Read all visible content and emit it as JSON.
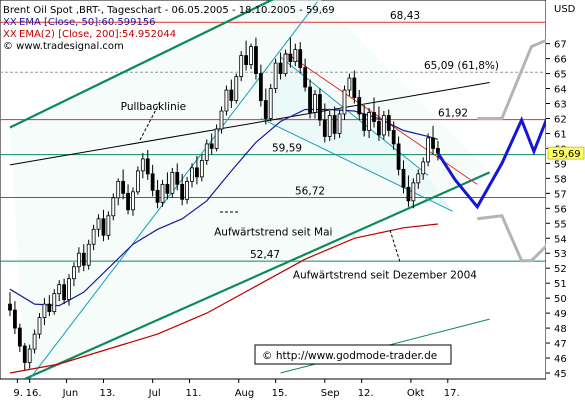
{
  "legend": {
    "title": "Brent Oil Spot ,BRT-, Tageschart - 06.05.2005 - 18.10.2005 - 59,69",
    "ema50": "EMA [Close, 50]:60.599156",
    "ema200": "EMA(2) [Close, 200]:54.952044",
    "ema50_marker": "XX",
    "ema200_marker": "XX",
    "copyright": "© www.tradesignal.com"
  },
  "currency": "USD",
  "watermark": "© http://www.godmode-trader.de",
  "colors": {
    "candle_up": "#ffffff",
    "candle_down": "#000000",
    "trend_green": "#0b8a5a",
    "ema50": "#1a1aa0",
    "ema200": "#c00000",
    "resistance_red": "#e03030",
    "channel_cyan": "#1a9fb0",
    "projection_blue": "#1515d8",
    "projection_gray": "#b4b4b4",
    "price_tag_bg": "#ffff66"
  },
  "chart_data": {
    "type": "candlestick",
    "title": "Brent Oil Spot ,BRT-, Tageschart - 06.05.2005 - 18.10.2005 - 59,69",
    "ylabel": "USD",
    "ylim": [
      45,
      68
    ],
    "y_ticks": [
      45,
      46,
      47,
      48,
      49,
      50,
      51,
      52,
      53,
      54,
      55,
      56,
      57,
      58,
      59,
      60,
      61,
      62,
      63,
      64,
      65,
      66,
      67
    ],
    "x_tick_labels": [
      "9.",
      "16.",
      "Jun",
      "13.",
      "Jul",
      "11.",
      "Aug",
      "15.",
      "Sep",
      "12.",
      "Okt",
      "17."
    ],
    "x_tick_days": [
      3,
      8,
      23,
      38,
      58,
      73,
      93,
      108,
      128,
      143,
      163,
      178
    ],
    "x_range_days": [
      0,
      185
    ],
    "last_price": 59.69,
    "last_price_label": "59,69",
    "candles": [
      {
        "d": 0,
        "o": 49.6,
        "h": 50.4,
        "l": 48.8,
        "c": 49.2
      },
      {
        "d": 2,
        "o": 49.2,
        "h": 49.8,
        "l": 47.6,
        "c": 48.0
      },
      {
        "d": 4,
        "o": 48.0,
        "h": 48.3,
        "l": 46.4,
        "c": 46.8
      },
      {
        "d": 6,
        "o": 46.8,
        "h": 47.0,
        "l": 45.2,
        "c": 45.7
      },
      {
        "d": 8,
        "o": 45.7,
        "h": 46.9,
        "l": 45.3,
        "c": 46.6
      },
      {
        "d": 10,
        "o": 46.6,
        "h": 47.9,
        "l": 46.3,
        "c": 47.6
      },
      {
        "d": 12,
        "o": 47.6,
        "h": 49.0,
        "l": 47.3,
        "c": 48.7
      },
      {
        "d": 14,
        "o": 48.7,
        "h": 50.0,
        "l": 48.2,
        "c": 49.6
      },
      {
        "d": 16,
        "o": 49.6,
        "h": 50.2,
        "l": 48.8,
        "c": 49.1
      },
      {
        "d": 18,
        "o": 49.1,
        "h": 50.6,
        "l": 48.9,
        "c": 50.3
      },
      {
        "d": 20,
        "o": 50.3,
        "h": 51.2,
        "l": 49.8,
        "c": 50.9
      },
      {
        "d": 22,
        "o": 50.9,
        "h": 51.3,
        "l": 49.6,
        "c": 49.9
      },
      {
        "d": 24,
        "o": 49.9,
        "h": 51.6,
        "l": 49.5,
        "c": 51.3
      },
      {
        "d": 26,
        "o": 51.3,
        "h": 52.4,
        "l": 50.8,
        "c": 52.1
      },
      {
        "d": 28,
        "o": 52.1,
        "h": 53.4,
        "l": 51.7,
        "c": 53.0
      },
      {
        "d": 30,
        "o": 53.0,
        "h": 53.6,
        "l": 51.8,
        "c": 52.2
      },
      {
        "d": 32,
        "o": 52.2,
        "h": 53.9,
        "l": 51.9,
        "c": 53.6
      },
      {
        "d": 34,
        "o": 53.6,
        "h": 54.9,
        "l": 53.2,
        "c": 54.6
      },
      {
        "d": 36,
        "o": 54.6,
        "h": 55.6,
        "l": 54.1,
        "c": 55.3
      },
      {
        "d": 38,
        "o": 55.3,
        "h": 55.9,
        "l": 53.8,
        "c": 54.2
      },
      {
        "d": 40,
        "o": 54.2,
        "h": 55.8,
        "l": 53.9,
        "c": 55.5
      },
      {
        "d": 42,
        "o": 55.5,
        "h": 57.0,
        "l": 55.2,
        "c": 56.7
      },
      {
        "d": 44,
        "o": 56.7,
        "h": 58.0,
        "l": 56.2,
        "c": 57.8
      },
      {
        "d": 46,
        "o": 57.8,
        "h": 58.6,
        "l": 56.6,
        "c": 57.0
      },
      {
        "d": 48,
        "o": 57.0,
        "h": 57.6,
        "l": 55.6,
        "c": 55.9
      },
      {
        "d": 50,
        "o": 55.9,
        "h": 57.4,
        "l": 55.5,
        "c": 57.1
      },
      {
        "d": 52,
        "o": 57.1,
        "h": 58.8,
        "l": 56.9,
        "c": 58.5
      },
      {
        "d": 54,
        "o": 58.5,
        "h": 59.7,
        "l": 58.0,
        "c": 59.3
      },
      {
        "d": 56,
        "o": 59.3,
        "h": 59.9,
        "l": 57.9,
        "c": 58.3
      },
      {
        "d": 58,
        "o": 58.3,
        "h": 58.9,
        "l": 56.8,
        "c": 57.2
      },
      {
        "d": 60,
        "o": 57.2,
        "h": 57.9,
        "l": 56.0,
        "c": 56.4
      },
      {
        "d": 62,
        "o": 56.4,
        "h": 57.9,
        "l": 56.1,
        "c": 57.6
      },
      {
        "d": 64,
        "o": 57.6,
        "h": 58.4,
        "l": 56.6,
        "c": 57.0
      },
      {
        "d": 66,
        "o": 57.0,
        "h": 58.7,
        "l": 56.7,
        "c": 58.4
      },
      {
        "d": 68,
        "o": 58.4,
        "h": 59.0,
        "l": 57.2,
        "c": 57.6
      },
      {
        "d": 70,
        "o": 57.6,
        "h": 58.3,
        "l": 56.2,
        "c": 56.6
      },
      {
        "d": 72,
        "o": 56.6,
        "h": 58.1,
        "l": 56.3,
        "c": 57.8
      },
      {
        "d": 74,
        "o": 57.8,
        "h": 59.0,
        "l": 57.4,
        "c": 58.7
      },
      {
        "d": 76,
        "o": 58.7,
        "h": 59.5,
        "l": 57.6,
        "c": 58.1
      },
      {
        "d": 78,
        "o": 58.1,
        "h": 59.6,
        "l": 57.8,
        "c": 59.2
      },
      {
        "d": 80,
        "o": 59.2,
        "h": 60.6,
        "l": 58.9,
        "c": 60.3
      },
      {
        "d": 82,
        "o": 60.3,
        "h": 61.0,
        "l": 59.6,
        "c": 60.0
      },
      {
        "d": 84,
        "o": 60.0,
        "h": 61.6,
        "l": 59.8,
        "c": 61.3
      },
      {
        "d": 86,
        "o": 61.3,
        "h": 62.8,
        "l": 61.0,
        "c": 62.5
      },
      {
        "d": 88,
        "o": 62.5,
        "h": 64.2,
        "l": 62.2,
        "c": 63.9
      },
      {
        "d": 90,
        "o": 63.9,
        "h": 64.6,
        "l": 62.7,
        "c": 63.2
      },
      {
        "d": 92,
        "o": 63.2,
        "h": 65.0,
        "l": 63.0,
        "c": 64.8
      },
      {
        "d": 94,
        "o": 64.8,
        "h": 66.5,
        "l": 64.5,
        "c": 66.2
      },
      {
        "d": 96,
        "o": 66.2,
        "h": 67.2,
        "l": 65.2,
        "c": 65.6
      },
      {
        "d": 98,
        "o": 65.6,
        "h": 67.0,
        "l": 65.3,
        "c": 66.8
      },
      {
        "d": 100,
        "o": 66.8,
        "h": 67.4,
        "l": 64.6,
        "c": 65.0
      },
      {
        "d": 102,
        "o": 65.0,
        "h": 65.6,
        "l": 62.8,
        "c": 63.2
      },
      {
        "d": 104,
        "o": 63.2,
        "h": 64.0,
        "l": 61.6,
        "c": 62.0
      },
      {
        "d": 106,
        "o": 62.0,
        "h": 64.3,
        "l": 61.8,
        "c": 64.0
      },
      {
        "d": 108,
        "o": 64.0,
        "h": 66.0,
        "l": 63.7,
        "c": 65.7
      },
      {
        "d": 110,
        "o": 65.7,
        "h": 66.4,
        "l": 64.6,
        "c": 65.0
      },
      {
        "d": 112,
        "o": 65.0,
        "h": 66.6,
        "l": 64.8,
        "c": 66.3
      },
      {
        "d": 114,
        "o": 66.3,
        "h": 67.4,
        "l": 65.4,
        "c": 65.8
      },
      {
        "d": 116,
        "o": 65.8,
        "h": 67.0,
        "l": 65.5,
        "c": 66.6
      },
      {
        "d": 118,
        "o": 66.6,
        "h": 67.1,
        "l": 65.0,
        "c": 65.4
      },
      {
        "d": 120,
        "o": 65.4,
        "h": 66.0,
        "l": 63.8,
        "c": 64.1
      },
      {
        "d": 122,
        "o": 64.1,
        "h": 64.6,
        "l": 62.0,
        "c": 62.4
      },
      {
        "d": 124,
        "o": 62.4,
        "h": 63.9,
        "l": 62.0,
        "c": 63.6
      },
      {
        "d": 126,
        "o": 63.6,
        "h": 64.0,
        "l": 61.5,
        "c": 61.9
      },
      {
        "d": 128,
        "o": 61.9,
        "h": 63.0,
        "l": 60.4,
        "c": 60.8
      },
      {
        "d": 130,
        "o": 60.8,
        "h": 62.5,
        "l": 60.5,
        "c": 62.2
      },
      {
        "d": 132,
        "o": 62.2,
        "h": 62.8,
        "l": 60.6,
        "c": 61.0
      },
      {
        "d": 134,
        "o": 61.0,
        "h": 62.6,
        "l": 60.7,
        "c": 62.3
      },
      {
        "d": 136,
        "o": 62.3,
        "h": 64.2,
        "l": 61.9,
        "c": 63.9
      },
      {
        "d": 138,
        "o": 63.9,
        "h": 65.0,
        "l": 63.5,
        "c": 64.7
      },
      {
        "d": 140,
        "o": 64.7,
        "h": 65.2,
        "l": 63.0,
        "c": 63.4
      },
      {
        "d": 142,
        "o": 63.4,
        "h": 63.9,
        "l": 61.9,
        "c": 62.3
      },
      {
        "d": 144,
        "o": 62.3,
        "h": 62.9,
        "l": 60.8,
        "c": 61.2
      },
      {
        "d": 146,
        "o": 61.2,
        "h": 62.7,
        "l": 60.7,
        "c": 62.4
      },
      {
        "d": 148,
        "o": 62.4,
        "h": 63.4,
        "l": 61.4,
        "c": 61.8
      },
      {
        "d": 150,
        "o": 61.8,
        "h": 62.8,
        "l": 60.5,
        "c": 60.9
      },
      {
        "d": 152,
        "o": 60.9,
        "h": 62.5,
        "l": 60.6,
        "c": 62.2
      },
      {
        "d": 154,
        "o": 62.2,
        "h": 62.6,
        "l": 60.8,
        "c": 61.2
      },
      {
        "d": 156,
        "o": 61.2,
        "h": 61.8,
        "l": 59.9,
        "c": 60.3
      },
      {
        "d": 158,
        "o": 60.3,
        "h": 60.8,
        "l": 58.2,
        "c": 58.6
      },
      {
        "d": 160,
        "o": 58.6,
        "h": 59.2,
        "l": 57.0,
        "c": 57.4
      },
      {
        "d": 162,
        "o": 57.4,
        "h": 58.2,
        "l": 56.1,
        "c": 56.5
      },
      {
        "d": 164,
        "o": 56.5,
        "h": 58.0,
        "l": 56.0,
        "c": 57.7
      },
      {
        "d": 166,
        "o": 57.7,
        "h": 58.6,
        "l": 57.3,
        "c": 58.3
      },
      {
        "d": 168,
        "o": 58.3,
        "h": 59.4,
        "l": 57.9,
        "c": 59.1
      },
      {
        "d": 170,
        "o": 59.1,
        "h": 61.0,
        "l": 58.8,
        "c": 60.7
      },
      {
        "d": 172,
        "o": 60.7,
        "h": 61.5,
        "l": 59.6,
        "c": 60.0
      },
      {
        "d": 174,
        "o": 60.0,
        "h": 60.5,
        "l": 59.2,
        "c": 59.69
      }
    ],
    "ema50": [
      {
        "d": 0,
        "v": 50.6
      },
      {
        "d": 10,
        "v": 49.6
      },
      {
        "d": 20,
        "v": 49.5
      },
      {
        "d": 30,
        "v": 50.4
      },
      {
        "d": 40,
        "v": 52.0
      },
      {
        "d": 50,
        "v": 53.6
      },
      {
        "d": 60,
        "v": 54.6
      },
      {
        "d": 70,
        "v": 55.3
      },
      {
        "d": 80,
        "v": 56.5
      },
      {
        "d": 90,
        "v": 58.5
      },
      {
        "d": 100,
        "v": 60.4
      },
      {
        "d": 110,
        "v": 61.8
      },
      {
        "d": 120,
        "v": 62.6
      },
      {
        "d": 130,
        "v": 62.6
      },
      {
        "d": 140,
        "v": 62.5
      },
      {
        "d": 150,
        "v": 62.0
      },
      {
        "d": 160,
        "v": 61.2
      },
      {
        "d": 170,
        "v": 60.8
      },
      {
        "d": 174,
        "v": 60.6
      }
    ],
    "ema200": [
      {
        "d": 0,
        "v": 45.0
      },
      {
        "d": 20,
        "v": 45.6
      },
      {
        "d": 40,
        "v": 46.6
      },
      {
        "d": 60,
        "v": 47.6
      },
      {
        "d": 80,
        "v": 49.0
      },
      {
        "d": 100,
        "v": 50.8
      },
      {
        "d": 120,
        "v": 52.6
      },
      {
        "d": 140,
        "v": 54.0
      },
      {
        "d": 160,
        "v": 54.7
      },
      {
        "d": 174,
        "v": 54.95
      }
    ],
    "horizontal_levels": [
      {
        "value": 68.43,
        "label": "68,43",
        "color": "#e03030"
      },
      {
        "value": 65.09,
        "label": "65,09 (61,8%)",
        "color": "#9a9a9a",
        "dashed": true
      },
      {
        "value": 61.92,
        "label": "61,92",
        "color": "#e03030"
      },
      {
        "value": 59.59,
        "label": "59,59",
        "color": "#0b8a5a"
      },
      {
        "value": 56.72,
        "label": "56,72",
        "color": "#0b8a5a"
      },
      {
        "value": 52.47,
        "label": "52,47",
        "color": "#0b8a5a"
      }
    ],
    "trend_lines": [
      {
        "name": "Aufwärtstrend seit Dezember 2004",
        "color": "#0b8a5a",
        "points": [
          {
            "d": 6,
            "v": 44.6
          },
          {
            "d": 195,
            "v": 58.4
          }
        ]
      },
      {
        "name": "green-channel-top",
        "color": "#0b8a5a",
        "points": [
          {
            "d": 0,
            "v": 61.4
          },
          {
            "d": 120,
            "v": 71.0
          }
        ]
      },
      {
        "name": "lower-channel",
        "color": "#0b8a5a",
        "points": [
          {
            "d": 110,
            "v": 45.0
          },
          {
            "d": 195,
            "v": 48.6
          }
        ]
      },
      {
        "name": "Pullbacklinie",
        "color": "#000000",
        "points": [
          {
            "d": 0,
            "v": 58.9
          },
          {
            "d": 195,
            "v": 64.4
          }
        ]
      },
      {
        "name": "cyan-channel-top",
        "color": "#1a9fb0",
        "points": [
          {
            "d": 110,
            "v": 66.1
          },
          {
            "d": 170,
            "v": 58.2
          }
        ]
      },
      {
        "name": "cyan-channel-bottom",
        "color": "#1a9fb0",
        "points": [
          {
            "d": 102,
            "v": 62.0
          },
          {
            "d": 180,
            "v": 55.8
          }
        ]
      },
      {
        "name": "Aufwärtstrend seit Mai",
        "color": "#1a9fb0",
        "points": [
          {
            "d": 8,
            "v": 44.6
          },
          {
            "d": 125,
            "v": 69.8
          }
        ]
      },
      {
        "name": "red-resistance",
        "color": "#e03030",
        "points": [
          {
            "d": 112,
            "v": 66.4
          },
          {
            "d": 190,
            "v": 57.6
          }
        ]
      }
    ],
    "projection_blue": [
      {
        "d": 174,
        "v": 59.69
      },
      {
        "d": 181,
        "v": 57.9
      },
      {
        "d": 190,
        "v": 56.1
      },
      {
        "d": 200,
        "v": 59.0
      },
      {
        "d": 208,
        "v": 61.9
      },
      {
        "d": 213,
        "v": 59.8
      },
      {
        "d": 226,
        "v": 65.2
      }
    ],
    "projection_gray": [
      {
        "d": 190,
        "v": 62.0
      },
      {
        "d": 200,
        "v": 62.0
      },
      {
        "d": 212,
        "v": 66.8
      },
      {
        "d": 222,
        "v": 67.5
      }
    ],
    "projection_gray_down": [
      {
        "d": 190,
        "v": 55.3
      },
      {
        "d": 200,
        "v": 55.5
      },
      {
        "d": 208,
        "v": 52.5
      },
      {
        "d": 212,
        "v": 52.5
      },
      {
        "d": 220,
        "v": 53.8
      }
    ],
    "annotations": [
      {
        "text": "Pullbacklinie",
        "d": 45,
        "v": 62.55
      },
      {
        "text": "Aufwärtstrend seit Mai",
        "d": 83,
        "v": 54.2
      },
      {
        "text": "Aufwärtstrend seit Dezember 2004",
        "d": 115,
        "v": 51.3
      }
    ]
  }
}
